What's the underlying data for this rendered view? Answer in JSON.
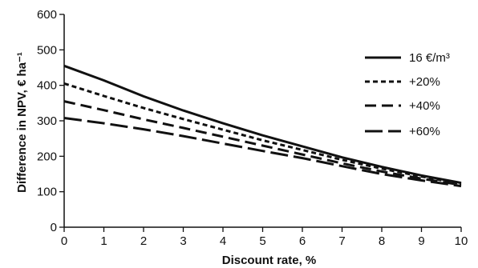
{
  "chart_data": {
    "type": "line",
    "title": "",
    "xlabel": "Discount rate, %",
    "ylabel": "Difference in NPV, € ha⁻¹",
    "xlim": [
      0,
      10
    ],
    "ylim": [
      0,
      600
    ],
    "xticks": [
      "0",
      "1",
      "2",
      "3",
      "4",
      "5",
      "6",
      "7",
      "8",
      "9",
      "10"
    ],
    "yticks": [
      "0",
      "100",
      "200",
      "300",
      "400",
      "500",
      "600"
    ],
    "grid": false,
    "legend_position": "right",
    "x": [
      0,
      1,
      2,
      3,
      4,
      5,
      6,
      7,
      8,
      9,
      10
    ],
    "series": [
      {
        "name": "16 €/m³",
        "dash": "solid",
        "values": [
          455,
          414,
          369,
          329,
          293,
          259,
          228,
          197,
          170,
          146,
          125
        ]
      },
      {
        "name": "+20%",
        "dash": "short",
        "values": [
          405,
          370,
          336,
          305,
          275,
          245,
          218,
          190,
          165,
          143,
          122
        ]
      },
      {
        "name": "+40%",
        "dash": "medium",
        "values": [
          355,
          330,
          304,
          280,
          255,
          230,
          205,
          180,
          157,
          137,
          119
        ]
      },
      {
        "name": "+60%",
        "dash": "dashdot",
        "values": [
          308,
          293,
          276,
          257,
          236,
          215,
          195,
          172,
          150,
          132,
          116
        ]
      }
    ]
  }
}
